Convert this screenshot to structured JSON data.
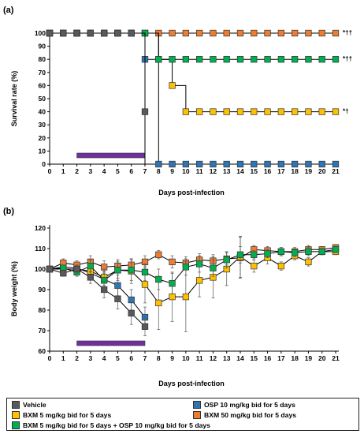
{
  "chart_data": [
    {
      "type": "line",
      "panel_label": "(a)",
      "ylabel": "Survival rate (%)",
      "xlabel": "Days post-infection",
      "ylim": [
        0,
        100
      ],
      "xlim": [
        0,
        21
      ],
      "step": true,
      "yticks": [
        0,
        10,
        20,
        30,
        40,
        50,
        60,
        70,
        80,
        90,
        100
      ],
      "xticks": [
        0,
        1,
        2,
        3,
        4,
        5,
        6,
        7,
        8,
        9,
        10,
        11,
        12,
        13,
        14,
        15,
        16,
        17,
        18,
        19,
        20,
        21
      ],
      "treatment_bar": [
        2,
        7
      ],
      "x": [
        0,
        1,
        2,
        3,
        4,
        5,
        6,
        7,
        8,
        9,
        10,
        11,
        12,
        13,
        14,
        15,
        16,
        17,
        18,
        19,
        20,
        21
      ],
      "series": [
        {
          "key": "vehicle",
          "values": [
            100,
            100,
            100,
            100,
            100,
            100,
            100,
            40,
            null,
            null,
            null,
            null,
            null,
            null,
            null,
            null,
            null,
            null,
            null,
            null,
            null,
            null
          ],
          "end": 0
        },
        {
          "key": "osp",
          "values": [
            100,
            100,
            100,
            100,
            100,
            100,
            100,
            80,
            0,
            0,
            0,
            0,
            0,
            0,
            0,
            0,
            0,
            0,
            0,
            0,
            0,
            0
          ]
        },
        {
          "key": "bxm5",
          "values": [
            100,
            100,
            100,
            100,
            100,
            100,
            100,
            100,
            80,
            60,
            40,
            40,
            40,
            40,
            40,
            40,
            40,
            40,
            40,
            40,
            40,
            40
          ]
        },
        {
          "key": "bxm50",
          "values": [
            100,
            100,
            100,
            100,
            100,
            100,
            100,
            100,
            100,
            100,
            100,
            100,
            100,
            100,
            100,
            100,
            100,
            100,
            100,
            100,
            100,
            100
          ]
        },
        {
          "key": "combo",
          "values": [
            100,
            100,
            100,
            100,
            100,
            100,
            100,
            100,
            80,
            80,
            80,
            80,
            80,
            80,
            80,
            80,
            80,
            80,
            80,
            80,
            80,
            80
          ]
        }
      ],
      "annotations": [
        {
          "series": "bxm50",
          "text": "*††"
        },
        {
          "series": "combo",
          "text": "*††"
        },
        {
          "series": "bxm5",
          "text": "*†"
        }
      ]
    },
    {
      "type": "line",
      "panel_label": "(b)",
      "ylabel": "Body weight (%)",
      "xlabel": "Days post-infection",
      "ylim": [
        60,
        120
      ],
      "xlim": [
        0,
        21
      ],
      "step": false,
      "yticks": [
        60,
        70,
        80,
        90,
        100,
        110,
        120
      ],
      "xticks": [
        0,
        1,
        2,
        3,
        4,
        5,
        6,
        7,
        8,
        9,
        10,
        11,
        12,
        13,
        14,
        15,
        16,
        17,
        18,
        19,
        20,
        21
      ],
      "treatment_bar": [
        2,
        7
      ],
      "x": [
        0,
        1,
        2,
        3,
        4,
        5,
        6,
        7,
        8,
        9,
        10,
        11,
        12,
        13,
        14,
        15,
        16,
        17,
        18,
        19,
        20,
        21
      ],
      "series": [
        {
          "key": "vehicle",
          "values": [
            100,
            98,
            100,
            96,
            90,
            85.5,
            78.5,
            72,
            null,
            null,
            null,
            null,
            null,
            null,
            null,
            null,
            null,
            null,
            null,
            null,
            null,
            null
          ],
          "err": [
            0,
            1.5,
            2,
            3,
            4,
            5,
            5.5,
            4.5,
            null,
            null,
            null,
            null,
            null,
            null,
            null,
            null,
            null,
            null,
            null,
            null,
            null,
            null
          ]
        },
        {
          "key": "osp",
          "values": [
            100,
            101,
            100.5,
            98,
            95,
            92,
            85,
            76.5,
            null,
            null,
            null,
            null,
            null,
            null,
            null,
            null,
            null,
            null,
            null,
            null,
            null,
            null
          ],
          "err": [
            0,
            2,
            2,
            3,
            4,
            5,
            5,
            5,
            null,
            null,
            null,
            null,
            null,
            null,
            null,
            null,
            null,
            null,
            null,
            null,
            null,
            null
          ]
        },
        {
          "key": "bxm5",
          "values": [
            100,
            100,
            100,
            99,
            96,
            99.5,
            99,
            92.5,
            83.5,
            86.5,
            86.5,
            94.5,
            96,
            100,
            106,
            101.5,
            105.5,
            101.5,
            106.5,
            103.5,
            108.5,
            108.5
          ],
          "err": [
            0,
            1,
            2,
            3,
            4,
            5,
            6,
            9,
            13,
            12,
            17,
            8,
            10,
            8,
            10,
            3,
            3,
            2,
            2,
            2,
            1.5,
            1.5
          ]
        },
        {
          "key": "bxm50",
          "values": [
            100,
            103,
            102,
            103.5,
            101,
            101.5,
            102,
            103.5,
            107,
            103.5,
            103,
            104.5,
            104,
            105,
            105.5,
            109.5,
            109,
            108.5,
            108.5,
            109.5,
            109.5,
            110.5
          ],
          "err": [
            0,
            2,
            2,
            3,
            3,
            3,
            3,
            3,
            2,
            3,
            3,
            3,
            3,
            3,
            10,
            2,
            2,
            2,
            2,
            2,
            1.5,
            1.5
          ]
        },
        {
          "key": "combo",
          "values": [
            100,
            100.5,
            98.5,
            101.5,
            94.5,
            99.5,
            99.5,
            98.5,
            95,
            93,
            101,
            102.5,
            100.5,
            104.5,
            107,
            107,
            107.5,
            108.5,
            108,
            108.5,
            108.5,
            109.5
          ],
          "err": [
            0,
            1,
            2,
            3,
            4,
            4,
            5,
            4,
            5,
            5,
            4,
            4,
            4,
            4,
            4,
            2,
            2,
            2,
            2,
            2,
            1.5,
            1.5
          ]
        }
      ]
    }
  ],
  "legend": [
    {
      "key": "vehicle",
      "label": "Vehicle",
      "color": "#595959"
    },
    {
      "key": "osp",
      "label": "OSP 10 mg/kg bid for 5 days",
      "color": "#2E75B6"
    },
    {
      "key": "bxm5",
      "label": "BXM 5 mg/kg bid for 5 days",
      "color": "#FFC000"
    },
    {
      "key": "bxm50",
      "label": "BXM 50 mg/kg bid for 5 days",
      "color": "#ED7D31"
    },
    {
      "key": "combo",
      "label": "BXM 5 mg/kg bid for 5 days + OSP 10 mg/kg bid for 5 days",
      "color": "#00B050"
    }
  ],
  "treatment_bar_color": "#7030A0"
}
